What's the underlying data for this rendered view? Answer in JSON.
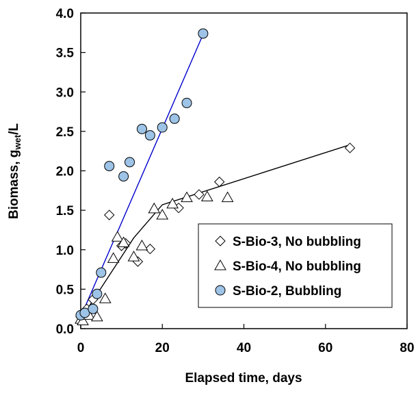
{
  "chart_data": {
    "type": "scatter",
    "xlabel": "Elapsed time, days",
    "ylabel_parts": {
      "pre": "Biomass, g",
      "sub": "wet",
      "post": "/L"
    },
    "xlim": [
      0,
      80
    ],
    "ylim": [
      0,
      4.0
    ],
    "x_ticks": [
      0,
      20,
      40,
      60,
      80
    ],
    "y_ticks": [
      0.0,
      0.5,
      1.0,
      1.5,
      2.0,
      2.5,
      3.0,
      3.5,
      4.0
    ],
    "x_tick_labels": [
      "0",
      "20",
      "40",
      "60",
      "80"
    ],
    "y_tick_labels": [
      "0.0",
      "0.5",
      "1.0",
      "1.5",
      "2.0",
      "2.5",
      "3.0",
      "3.5",
      "4.0"
    ],
    "grid": false,
    "legend_position": "lower-right",
    "series": [
      {
        "name": "S-Bio-3, No bubbling",
        "marker": "diamond",
        "fill": "#ffffff",
        "x": [
          0,
          1.5,
          3,
          7,
          10,
          11,
          14,
          17,
          24,
          29,
          34,
          66
        ],
        "y": [
          0.15,
          0.25,
          0.37,
          1.44,
          1.05,
          1.08,
          0.85,
          1.01,
          1.53,
          1.7,
          1.86,
          2.29
        ]
      },
      {
        "name": "S-Bio-4, No bubbling",
        "marker": "triangle",
        "fill": "#ffffff",
        "x": [
          0,
          0.5,
          2,
          4,
          6,
          8,
          9,
          10.5,
          13,
          15,
          18,
          20,
          22.5,
          26,
          31,
          36
        ],
        "y": [
          0.12,
          0.1,
          0.17,
          0.15,
          0.38,
          0.89,
          1.16,
          1.09,
          0.91,
          1.05,
          1.52,
          1.44,
          1.58,
          1.66,
          1.67,
          1.66
        ]
      },
      {
        "name": "S-Bio-2, Bubbling",
        "marker": "circle",
        "fill": "#9dc3e6",
        "x": [
          0,
          1,
          3,
          4,
          5,
          7,
          10.5,
          12,
          15,
          17,
          20,
          23,
          26,
          30
        ],
        "y": [
          0.17,
          0.2,
          0.25,
          0.44,
          0.71,
          2.06,
          1.93,
          2.11,
          2.53,
          2.45,
          2.55,
          2.66,
          2.86,
          3.74
        ]
      }
    ],
    "trend_lines": [
      {
        "color": "#000000",
        "x": [
          0,
          13,
          20,
          66
        ],
        "y": [
          0.12,
          1.15,
          1.57,
          2.33
        ]
      },
      {
        "color": "#0000cc",
        "x": [
          0,
          30
        ],
        "y": [
          0.15,
          3.73
        ]
      }
    ]
  }
}
